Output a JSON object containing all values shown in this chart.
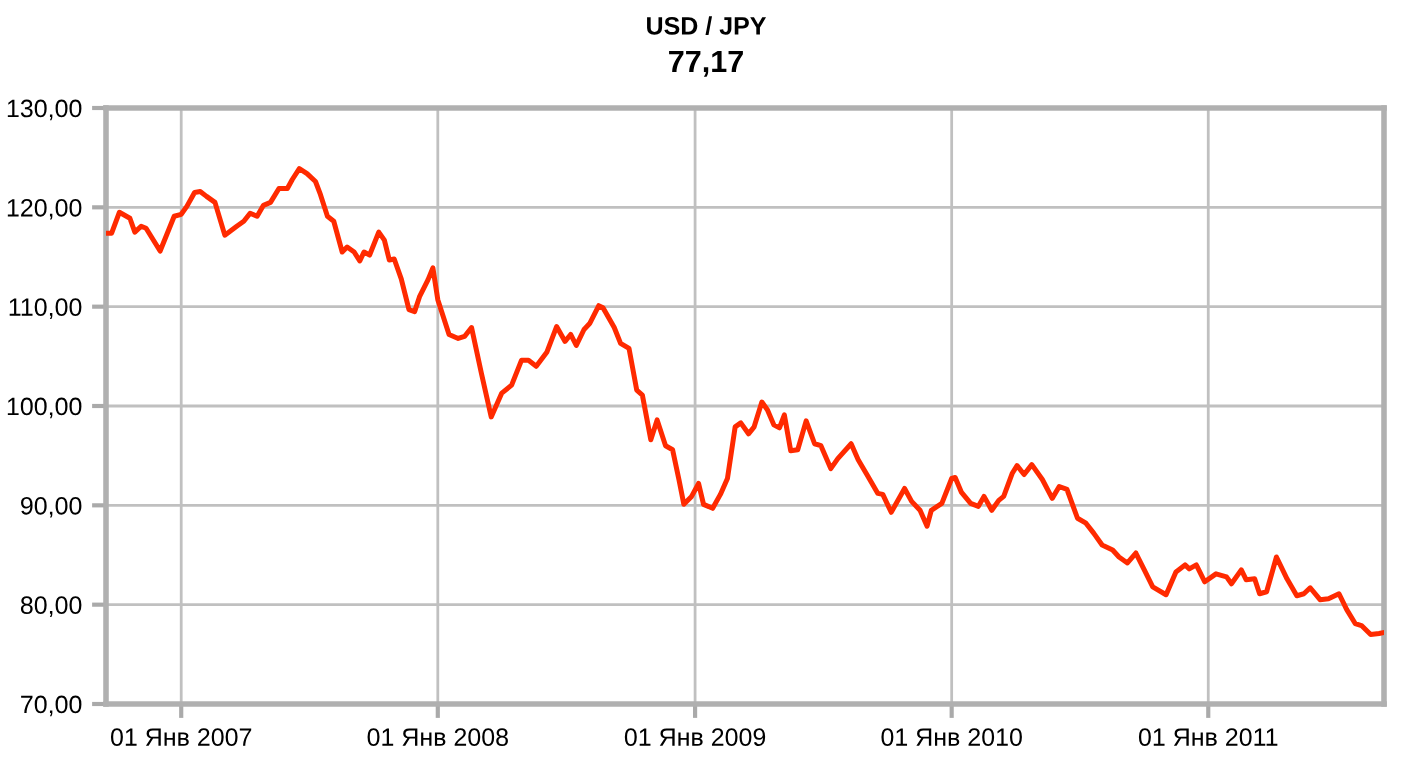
{
  "chart_data": {
    "type": "line",
    "title": "USD / JPY",
    "subtitle": "77,17",
    "xlim": [
      "2006-09-16",
      "2011-09-08"
    ],
    "xticks": [
      {
        "value": "2007-01-01",
        "label": "01 Янв 2007"
      },
      {
        "value": "2008-01-01",
        "label": "01 Янв 2008"
      },
      {
        "value": "2009-01-01",
        "label": "01 Янв 2009"
      },
      {
        "value": "2010-01-01",
        "label": "01 Янв 2010"
      },
      {
        "value": "2011-01-01",
        "label": "01 Янв 2011"
      }
    ],
    "ylim": [
      70,
      130
    ],
    "yticks": [
      {
        "value": 70,
        "label": "70,00"
      },
      {
        "value": 80,
        "label": "80,00"
      },
      {
        "value": 90,
        "label": "90,00"
      },
      {
        "value": 100,
        "label": "100,00"
      },
      {
        "value": 110,
        "label": "110,00"
      },
      {
        "value": 120,
        "label": "120,00"
      },
      {
        "value": 130,
        "label": "130,00"
      }
    ],
    "grid": true,
    "marker": "none",
    "line_style": "solid",
    "series": [
      {
        "color": "#ff2a00",
        "x": [
          "2006-09-16",
          "2006-09-24",
          "2006-10-05",
          "2006-10-20",
          "2006-10-27",
          "2006-11-05",
          "2006-11-12",
          "2006-12-02",
          "2006-12-22",
          "2007-01-01",
          "2007-01-09",
          "2007-01-20",
          "2007-01-28",
          "2007-02-06",
          "2007-02-18",
          "2007-03-04",
          "2007-03-21",
          "2007-03-31",
          "2007-04-09",
          "2007-04-19",
          "2007-04-28",
          "2007-05-08",
          "2007-05-20",
          "2007-06-01",
          "2007-06-08",
          "2007-06-18",
          "2007-06-29",
          "2007-07-11",
          "2007-07-18",
          "2007-07-28",
          "2007-08-06",
          "2007-08-18",
          "2007-08-25",
          "2007-09-04",
          "2007-09-12",
          "2007-09-18",
          "2007-09-26",
          "2007-10-09",
          "2007-10-17",
          "2007-10-24",
          "2007-10-31",
          "2007-11-10",
          "2007-11-21",
          "2007-11-29",
          "2007-12-06",
          "2007-12-18",
          "2007-12-25",
          "2008-01-01",
          "2008-01-17",
          "2008-01-30",
          "2008-02-08",
          "2008-02-18",
          "2008-03-03",
          "2008-03-17",
          "2008-04-01",
          "2008-04-15",
          "2008-04-29",
          "2008-05-09",
          "2008-05-20",
          "2008-06-04",
          "2008-06-18",
          "2008-06-30",
          "2008-07-08",
          "2008-07-16",
          "2008-07-27",
          "2008-08-04",
          "2008-08-17",
          "2008-08-23",
          "2008-09-08",
          "2008-09-17",
          "2008-09-29",
          "2008-10-10",
          "2008-10-18",
          "2008-10-30",
          "2008-11-08",
          "2008-11-20",
          "2008-11-30",
          "2008-12-09",
          "2008-12-16",
          "2008-12-27",
          "2009-01-06",
          "2009-01-13",
          "2009-01-26",
          "2009-02-06",
          "2009-02-16",
          "2009-02-27",
          "2009-03-07",
          "2009-03-18",
          "2009-03-26",
          "2009-04-06",
          "2009-04-14",
          "2009-04-23",
          "2009-05-01",
          "2009-05-08",
          "2009-05-17",
          "2009-05-27",
          "2009-06-08",
          "2009-06-20",
          "2009-06-29",
          "2009-07-13",
          "2009-07-23",
          "2009-08-11",
          "2009-08-21",
          "2009-09-04",
          "2009-09-18",
          "2009-09-25",
          "2009-10-07",
          "2009-10-26",
          "2009-11-05",
          "2009-11-17",
          "2009-11-27",
          "2009-12-03",
          "2009-12-18",
          "2010-01-01",
          "2010-01-06",
          "2010-01-15",
          "2010-01-28",
          "2010-02-08",
          "2010-02-16",
          "2010-02-27",
          "2010-03-09",
          "2010-03-16",
          "2010-03-28",
          "2010-04-04",
          "2010-04-14",
          "2010-04-25",
          "2010-05-10",
          "2010-05-24",
          "2010-06-03",
          "2010-06-14",
          "2010-06-29",
          "2010-07-11",
          "2010-07-22",
          "2010-08-03",
          "2010-08-18",
          "2010-08-27",
          "2010-09-08",
          "2010-09-20",
          "2010-10-02",
          "2010-10-14",
          "2010-11-02",
          "2010-11-16",
          "2010-11-29",
          "2010-12-05",
          "2010-12-15",
          "2010-12-27",
          "2011-01-12",
          "2011-01-27",
          "2011-02-03",
          "2011-02-17",
          "2011-02-24",
          "2011-03-08",
          "2011-03-15",
          "2011-03-25",
          "2011-04-08",
          "2011-04-23",
          "2011-05-07",
          "2011-05-17",
          "2011-05-26",
          "2011-06-09",
          "2011-06-21",
          "2011-07-06",
          "2011-07-17",
          "2011-07-29",
          "2011-08-07",
          "2011-08-20",
          "2011-09-01",
          "2011-09-08"
        ],
        "values": [
          117.4,
          117.4,
          119.5,
          118.9,
          117.5,
          118.1,
          117.9,
          115.6,
          119.1,
          119.3,
          120.1,
          121.5,
          121.6,
          121.1,
          120.5,
          117.2,
          118.1,
          118.6,
          119.4,
          119.1,
          120.2,
          120.5,
          121.9,
          121.9,
          122.8,
          123.9,
          123.4,
          122.6,
          121.3,
          119.1,
          118.6,
          115.5,
          116.0,
          115.5,
          114.6,
          115.5,
          115.2,
          117.5,
          116.7,
          114.7,
          114.8,
          112.8,
          109.7,
          109.5,
          111.0,
          112.7,
          113.9,
          110.7,
          107.2,
          106.8,
          107.0,
          107.9,
          103.3,
          98.9,
          101.3,
          102.1,
          104.6,
          104.6,
          104.0,
          105.4,
          108.0,
          106.5,
          107.2,
          106.1,
          107.7,
          108.3,
          110.1,
          109.9,
          107.9,
          106.3,
          105.8,
          101.6,
          101.1,
          96.6,
          98.6,
          96.0,
          95.6,
          92.6,
          90.1,
          90.9,
          92.2,
          90.1,
          89.7,
          91.1,
          92.7,
          97.9,
          98.3,
          97.2,
          97.9,
          100.4,
          99.6,
          98.1,
          97.8,
          99.1,
          95.5,
          95.6,
          98.5,
          96.2,
          96.0,
          93.7,
          94.7,
          96.2,
          94.6,
          92.9,
          91.2,
          91.1,
          89.3,
          91.7,
          90.4,
          89.5,
          87.9,
          89.5,
          90.2,
          92.7,
          92.8,
          91.3,
          90.2,
          89.9,
          90.9,
          89.5,
          90.5,
          90.9,
          93.2,
          94.0,
          93.1,
          94.1,
          92.6,
          90.7,
          91.9,
          91.6,
          88.7,
          88.2,
          87.2,
          86.0,
          85.5,
          84.8,
          84.2,
          85.2,
          83.5,
          81.8,
          81.0,
          83.3,
          84.0,
          83.6,
          84.0,
          82.3,
          83.1,
          82.8,
          82.1,
          83.5,
          82.5,
          82.6,
          81.1,
          81.3,
          84.8,
          82.6,
          80.9,
          81.1,
          81.7,
          80.5,
          80.6,
          81.1,
          79.5,
          78.1,
          77.9,
          77.0,
          77.1,
          77.2
        ]
      }
    ]
  }
}
